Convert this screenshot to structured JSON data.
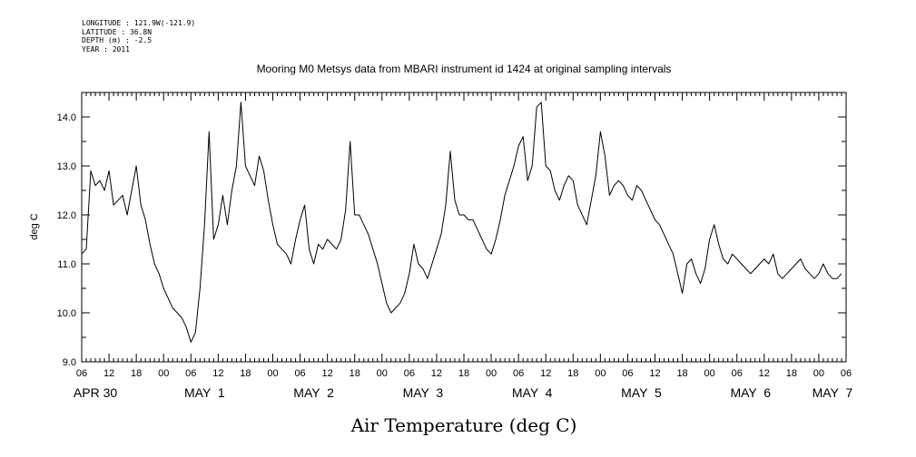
{
  "header": {
    "longitude": "LONGITUDE : 121.9W(-121.9)",
    "latitude": "LATITUDE : 36.8N",
    "depth": "DEPTH (m) : -2.5",
    "year": "YEAR : 2011"
  },
  "chart_data": {
    "type": "line",
    "title": "Mooring M0 Metsys data from MBARI instrument id 1424 at original sampling intervals",
    "ylabel": "deg C",
    "xlabel": "Air Temperature (deg C)",
    "ylim": [
      9.0,
      14.5
    ],
    "xlim_hours": [
      0,
      168
    ],
    "yticks": [
      9.0,
      10.0,
      11.0,
      12.0,
      13.0,
      14.0
    ],
    "ytick_labels": [
      "9.0",
      "10.0",
      "11.0",
      "12.0",
      "13.0",
      "14.0"
    ],
    "xtick_labels": [
      "06",
      "12",
      "18",
      "00",
      "06",
      "12",
      "18",
      "00",
      "06",
      "12",
      "18",
      "00",
      "06",
      "12",
      "18",
      "00",
      "06",
      "12",
      "18",
      "00",
      "06",
      "12",
      "18",
      "00",
      "06",
      "12",
      "18",
      "00",
      "06"
    ],
    "date_labels": [
      {
        "label": "APR 30",
        "hour": 3
      },
      {
        "label": "MAY  1",
        "hour": 27
      },
      {
        "label": "MAY  2",
        "hour": 51
      },
      {
        "label": "MAY  3",
        "hour": 75
      },
      {
        "label": "MAY  4",
        "hour": 99
      },
      {
        "label": "MAY  5",
        "hour": 123
      },
      {
        "label": "MAY  6",
        "hour": 147
      },
      {
        "label": "MAY  7",
        "hour": 165
      }
    ],
    "series": [
      {
        "color": "#000000",
        "x": [
          0,
          1,
          2,
          3,
          4,
          5,
          6,
          7,
          8,
          9,
          10,
          11,
          12,
          13,
          14,
          15,
          16,
          17,
          18,
          19,
          20,
          21,
          22,
          23,
          24,
          25,
          26,
          27,
          28,
          29,
          30,
          31,
          32,
          33,
          34,
          35,
          36,
          37,
          38,
          39,
          40,
          41,
          42,
          43,
          44,
          45,
          46,
          47,
          48,
          49,
          50,
          51,
          52,
          53,
          54,
          55,
          56,
          57,
          58,
          59,
          60,
          61,
          62,
          63,
          64,
          65,
          66,
          67,
          68,
          69,
          70,
          71,
          72,
          73,
          74,
          75,
          76,
          77,
          78,
          79,
          80,
          81,
          82,
          83,
          84,
          85,
          86,
          87,
          88,
          89,
          90,
          91,
          92,
          93,
          94,
          95,
          96,
          97,
          98,
          99,
          100,
          101,
          102,
          103,
          104,
          105,
          106,
          107,
          108,
          109,
          110,
          111,
          112,
          113,
          114,
          115,
          116,
          117,
          118,
          119,
          120,
          121,
          122,
          123,
          124,
          125,
          126,
          127,
          128,
          129,
          130,
          131,
          132,
          133,
          134,
          135,
          136,
          137,
          138,
          139,
          140,
          141,
          142,
          143,
          144,
          145,
          146,
          147,
          148,
          149,
          150,
          151,
          152,
          153,
          154,
          155,
          156,
          157,
          158,
          159,
          160,
          161,
          162,
          163,
          164,
          165,
          166,
          167
        ],
        "y": [
          11.2,
          11.3,
          12.9,
          12.6,
          12.7,
          12.5,
          12.9,
          12.2,
          12.3,
          12.4,
          12.0,
          12.5,
          13.0,
          12.2,
          11.9,
          11.4,
          11.0,
          10.8,
          10.5,
          10.3,
          10.1,
          10.0,
          9.9,
          9.7,
          9.4,
          9.6,
          10.5,
          11.8,
          13.7,
          11.5,
          11.8,
          12.4,
          11.8,
          12.5,
          13.0,
          14.3,
          13.0,
          12.8,
          12.6,
          13.2,
          12.9,
          12.3,
          11.8,
          11.4,
          11.3,
          11.2,
          11.0,
          11.5,
          11.9,
          12.2,
          11.3,
          11.0,
          11.4,
          11.3,
          11.5,
          11.4,
          11.3,
          11.5,
          12.1,
          13.5,
          12.0,
          12.0,
          11.8,
          11.6,
          11.3,
          11.0,
          10.6,
          10.2,
          10.0,
          10.1,
          10.2,
          10.4,
          10.8,
          11.4,
          11.0,
          10.9,
          10.7,
          11.0,
          11.3,
          11.6,
          12.2,
          13.3,
          12.3,
          12.0,
          12.0,
          11.9,
          11.9,
          11.7,
          11.5,
          11.3,
          11.2,
          11.5,
          11.9,
          12.4,
          12.7,
          13.0,
          13.4,
          13.6,
          12.7,
          13.0,
          14.2,
          14.3,
          13.0,
          12.9,
          12.5,
          12.3,
          12.6,
          12.8,
          12.7,
          12.2,
          12.0,
          11.8,
          12.3,
          12.8,
          13.7,
          13.2,
          12.4,
          12.6,
          12.7,
          12.6,
          12.4,
          12.3,
          12.6,
          12.5,
          12.3,
          12.1,
          11.9,
          11.8,
          11.6,
          11.4,
          11.2,
          10.8,
          10.4,
          11.0,
          11.1,
          10.8,
          10.6,
          10.9,
          11.5,
          11.8,
          11.4,
          11.1,
          11.0,
          11.2,
          11.1,
          11.0,
          10.9,
          10.8,
          10.9,
          11.0,
          11.1,
          11.0,
          11.2,
          10.8,
          10.7,
          10.8,
          10.9,
          11.0,
          11.1,
          10.9,
          10.8,
          10.7,
          10.8,
          11.0,
          10.8,
          10.7,
          10.7,
          10.8
        ]
      }
    ]
  }
}
